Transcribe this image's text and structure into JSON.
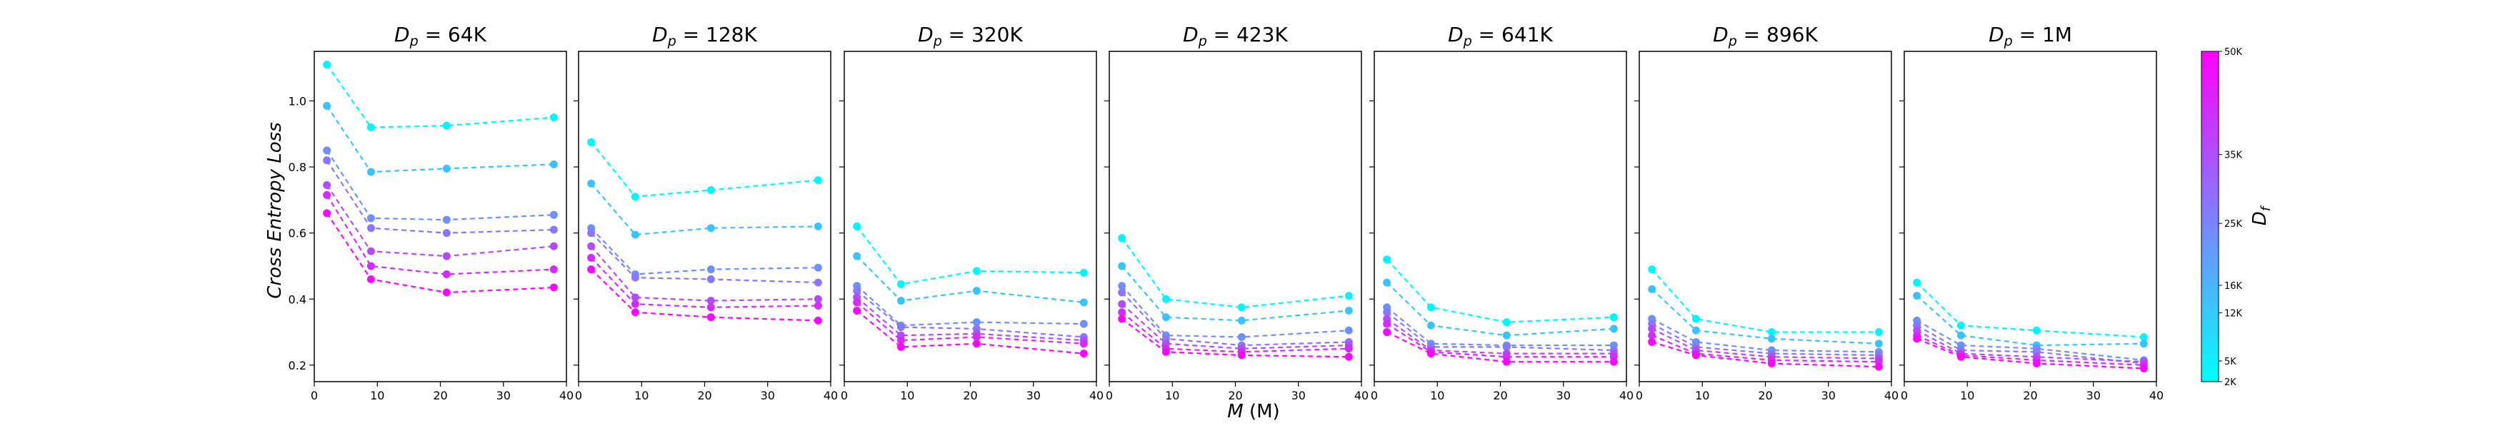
{
  "chart_data": {
    "type": "line",
    "xlabel": "M (M)",
    "ylabel": "Cross Entropy Loss",
    "x_ticks": [
      0,
      10,
      20,
      30,
      40
    ],
    "y_ticks": [
      0.2,
      0.4,
      0.6,
      0.8,
      1.0
    ],
    "xlim": [
      0,
      40
    ],
    "ylim": [
      0.15,
      1.15
    ],
    "colorbar": {
      "label": "D_f",
      "label_sub": "f",
      "ticks": [
        "2K",
        "5K",
        "12K",
        "16K",
        "25K",
        "35K",
        "50K"
      ],
      "min_color": "#00ffff",
      "max_color": "#ff00ff"
    },
    "x": [
      2,
      9,
      21,
      38
    ],
    "panels": [
      {
        "title": "D_p = 64K",
        "title_value": "64K",
        "series": [
          {
            "values": [
              1.11,
              0.92,
              0.925,
              0.95
            ]
          },
          {
            "values": [
              0.985,
              0.785,
              0.795,
              0.808
            ]
          },
          {
            "values": [
              0.85,
              0.645,
              0.64,
              0.655
            ]
          },
          {
            "values": [
              0.82,
              0.615,
              0.6,
              0.61
            ]
          },
          {
            "values": [
              0.745,
              0.545,
              0.53,
              0.56
            ]
          },
          {
            "values": [
              0.715,
              0.5,
              0.475,
              0.49
            ]
          },
          {
            "values": [
              0.66,
              0.46,
              0.42,
              0.435
            ]
          }
        ]
      },
      {
        "title": "D_p = 128K",
        "title_value": "128K",
        "series": [
          {
            "values": [
              0.875,
              0.71,
              0.73,
              0.76
            ]
          },
          {
            "values": [
              0.75,
              0.595,
              0.615,
              0.62
            ]
          },
          {
            "values": [
              0.615,
              0.475,
              0.49,
              0.495
            ]
          },
          {
            "values": [
              0.6,
              0.465,
              0.46,
              0.45
            ]
          },
          {
            "values": [
              0.56,
              0.405,
              0.395,
              0.4
            ]
          },
          {
            "values": [
              0.525,
              0.385,
              0.375,
              0.38
            ]
          },
          {
            "values": [
              0.49,
              0.36,
              0.345,
              0.335
            ]
          }
        ]
      },
      {
        "title": "D_p = 320K",
        "title_value": "320K",
        "series": [
          {
            "values": [
              0.62,
              0.445,
              0.485,
              0.48
            ]
          },
          {
            "values": [
              0.53,
              0.395,
              0.425,
              0.39
            ]
          },
          {
            "values": [
              0.44,
              0.32,
              0.33,
              0.325
            ]
          },
          {
            "values": [
              0.425,
              0.315,
              0.31,
              0.285
            ]
          },
          {
            "values": [
              0.405,
              0.29,
              0.295,
              0.275
            ]
          },
          {
            "values": [
              0.39,
              0.275,
              0.285,
              0.265
            ]
          },
          {
            "values": [
              0.365,
              0.255,
              0.265,
              0.235
            ]
          }
        ]
      },
      {
        "title": "D_p = 423K",
        "title_value": "423K",
        "series": [
          {
            "values": [
              0.585,
              0.4,
              0.375,
              0.41
            ]
          },
          {
            "values": [
              0.5,
              0.345,
              0.335,
              0.365
            ]
          },
          {
            "values": [
              0.44,
              0.29,
              0.285,
              0.305
            ]
          },
          {
            "values": [
              0.42,
              0.28,
              0.26,
              0.27
            ]
          },
          {
            "values": [
              0.385,
              0.265,
              0.25,
              0.26
            ]
          },
          {
            "values": [
              0.36,
              0.25,
              0.24,
              0.25
            ]
          },
          {
            "values": [
              0.34,
              0.24,
              0.23,
              0.225
            ]
          }
        ]
      },
      {
        "title": "D_p = 641K",
        "title_value": "641K",
        "series": [
          {
            "values": [
              0.52,
              0.375,
              0.33,
              0.345
            ]
          },
          {
            "values": [
              0.45,
              0.32,
              0.29,
              0.31
            ]
          },
          {
            "values": [
              0.375,
              0.265,
              0.26,
              0.26
            ]
          },
          {
            "values": [
              0.36,
              0.255,
              0.255,
              0.245
            ]
          },
          {
            "values": [
              0.34,
              0.245,
              0.235,
              0.235
            ]
          },
          {
            "values": [
              0.325,
              0.24,
              0.225,
              0.225
            ]
          },
          {
            "values": [
              0.3,
              0.235,
              0.21,
              0.21
            ]
          }
        ]
      },
      {
        "title": "D_p = 896K",
        "title_value": "896K",
        "series": [
          {
            "values": [
              0.49,
              0.34,
              0.3,
              0.3
            ]
          },
          {
            "values": [
              0.43,
              0.305,
              0.28,
              0.265
            ]
          },
          {
            "values": [
              0.34,
              0.27,
              0.245,
              0.24
            ]
          },
          {
            "values": [
              0.325,
              0.255,
              0.235,
              0.23
            ]
          },
          {
            "values": [
              0.31,
              0.245,
              0.225,
              0.22
            ]
          },
          {
            "values": [
              0.29,
              0.235,
              0.215,
              0.21
            ]
          },
          {
            "values": [
              0.27,
              0.23,
              0.205,
              0.195
            ]
          }
        ]
      },
      {
        "title": "D_p = 1M",
        "title_value": "1M",
        "series": [
          {
            "values": [
              0.45,
              0.32,
              0.305,
              0.285
            ]
          },
          {
            "values": [
              0.41,
              0.29,
              0.26,
              0.265
            ]
          },
          {
            "values": [
              0.335,
              0.26,
              0.25,
              0.215
            ]
          },
          {
            "values": [
              0.32,
              0.245,
              0.24,
              0.205
            ]
          },
          {
            "values": [
              0.305,
              0.235,
              0.225,
              0.21
            ]
          },
          {
            "values": [
              0.29,
              0.23,
              0.215,
              0.2
            ]
          },
          {
            "values": [
              0.28,
              0.225,
              0.205,
              0.19
            ]
          }
        ]
      }
    ],
    "series_colors": [
      "#00f6ff",
      "#3cc3ff",
      "#6f90ff",
      "#8a76ff",
      "#b34cff",
      "#d22dff",
      "#f50aff"
    ]
  }
}
